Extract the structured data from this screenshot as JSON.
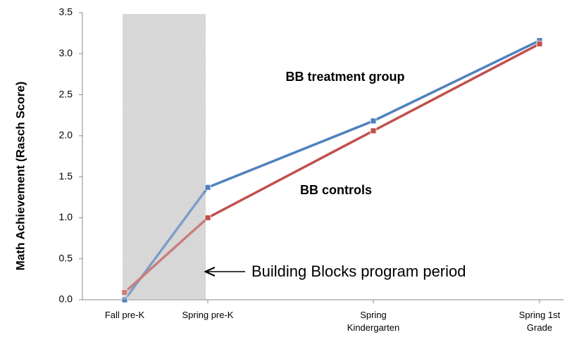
{
  "chart_data": {
    "type": "line",
    "y_label": "Math Achievement (Rasch Score)",
    "categories": [
      "Fall pre-K",
      "Spring pre-K",
      "Spring Kindergarten",
      "Spring 1st Grade"
    ],
    "series": [
      {
        "name": "BB treatment group",
        "color": "#4f81bd",
        "values": [
          0.0,
          1.37,
          2.18,
          3.16
        ]
      },
      {
        "name": "BB controls",
        "color": "#c0504d",
        "values": [
          0.09,
          1.0,
          2.06,
          3.12
        ]
      }
    ],
    "ylim": [
      0,
      3.5
    ],
    "yticks": [
      {
        "value": 0,
        "label": "0.0"
      },
      0.5,
      {
        "value": 1,
        "label": "1.0"
      },
      1.5,
      {
        "value": 2,
        "label": "2.0"
      },
      2.5,
      {
        "value": 3,
        "label": "3.0"
      },
      3.5
    ],
    "annotation": "Building Blocks program period",
    "grid": false
  }
}
